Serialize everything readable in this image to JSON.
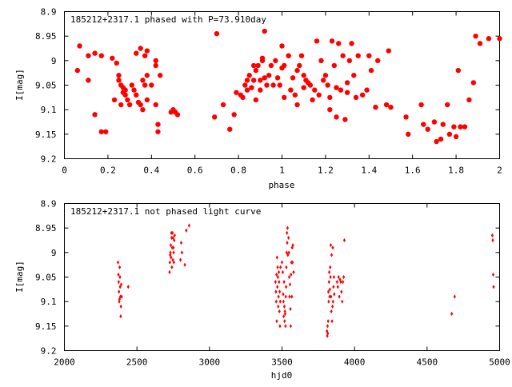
{
  "chart_data": [
    {
      "type": "scatter",
      "title": "185212+2317.1 phased with P=73.910day",
      "xlabel": "phase",
      "ylabel": "I[mag]",
      "xlim": [
        0,
        2
      ],
      "ylim": [
        8.9,
        9.2
      ],
      "y_inverted": true,
      "grid": false,
      "marker_color": "#ff0000",
      "marker": "filled-circle",
      "x_ticks": [
        "0",
        "0.2",
        "0.4",
        "0.6",
        "0.8",
        "1",
        "1.2",
        "1.4",
        "1.6",
        "1.8",
        "2"
      ],
      "x_tick_values": [
        0,
        0.2,
        0.4,
        0.6,
        0.8,
        1.0,
        1.2,
        1.4,
        1.6,
        1.8,
        2.0
      ],
      "y_ticks": [
        "8.9",
        "8.95",
        "9",
        "9.05",
        "9.1",
        "9.15",
        "9.2"
      ],
      "y_tick_values": [
        8.9,
        8.95,
        9.0,
        9.05,
        9.1,
        9.15,
        9.2
      ],
      "points": [
        [
          0.06,
          9.02
        ],
        [
          0.07,
          8.97
        ],
        [
          0.11,
          8.99
        ],
        [
          0.11,
          9.04
        ],
        [
          0.14,
          8.985
        ],
        [
          0.14,
          9.11
        ],
        [
          0.17,
          8.99
        ],
        [
          0.17,
          9.145
        ],
        [
          0.19,
          9.145
        ],
        [
          0.22,
          8.995
        ],
        [
          0.23,
          9.08
        ],
        [
          0.24,
          9.005
        ],
        [
          0.25,
          9.03
        ],
        [
          0.25,
          9.04
        ],
        [
          0.26,
          9.09
        ],
        [
          0.26,
          9.05
        ],
        [
          0.27,
          9.055
        ],
        [
          0.27,
          9.065
        ],
        [
          0.28,
          9.06
        ],
        [
          0.28,
          9.07
        ],
        [
          0.29,
          9.08
        ],
        [
          0.3,
          9.09
        ],
        [
          0.31,
          9.05
        ],
        [
          0.32,
          9.06
        ],
        [
          0.33,
          8.985
        ],
        [
          0.33,
          9.07
        ],
        [
          0.34,
          9.085
        ],
        [
          0.35,
          8.975
        ],
        [
          0.35,
          9.09
        ],
        [
          0.36,
          9.1
        ],
        [
          0.36,
          9.04
        ],
        [
          0.37,
          9.05
        ],
        [
          0.37,
          8.99
        ],
        [
          0.38,
          9.03
        ],
        [
          0.38,
          8.98
        ],
        [
          0.38,
          9.08
        ],
        [
          0.4,
          9.05
        ],
        [
          0.42,
          9.09
        ],
        [
          0.42,
          9.0
        ],
        [
          0.42,
          9.01
        ],
        [
          0.43,
          9.13
        ],
        [
          0.43,
          9.145
        ],
        [
          0.44,
          9.03
        ],
        [
          0.49,
          9.105
        ],
        [
          0.5,
          9.1
        ],
        [
          0.51,
          9.105
        ],
        [
          0.52,
          9.11
        ],
        [
          0.69,
          9.115
        ],
        [
          0.7,
          8.945
        ],
        [
          0.73,
          9.09
        ],
        [
          0.76,
          9.14
        ],
        [
          0.78,
          9.11
        ],
        [
          0.79,
          9.065
        ],
        [
          0.81,
          9.07
        ],
        [
          0.82,
          9.075
        ],
        [
          0.83,
          9.05
        ],
        [
          0.84,
          9.06
        ],
        [
          0.84,
          9.04
        ],
        [
          0.85,
          9.03
        ],
        [
          0.86,
          9.055
        ],
        [
          0.87,
          9.04
        ],
        [
          0.87,
          9.01
        ],
        [
          0.88,
          9.02
        ],
        [
          0.88,
          9.08
        ],
        [
          0.89,
          9.01
        ],
        [
          0.9,
          9.06
        ],
        [
          0.9,
          9.04
        ],
        [
          0.91,
          9.0
        ],
        [
          0.91,
          8.995
        ],
        [
          0.92,
          9.035
        ],
        [
          0.92,
          8.94
        ],
        [
          0.93,
          9.05
        ],
        [
          0.94,
          9.03
        ],
        [
          0.95,
          9.01
        ],
        [
          0.96,
          9.05
        ],
        [
          0.97,
          9.0
        ],
        [
          0.98,
          9.035
        ],
        [
          0.99,
          9.05
        ],
        [
          1.0,
          8.97
        ],
        [
          1.0,
          9.015
        ],
        [
          1.01,
          9.075
        ],
        [
          1.01,
          9.01
        ],
        [
          1.03,
          8.99
        ],
        [
          1.04,
          9.06
        ],
        [
          1.05,
          9.035
        ],
        [
          1.06,
          9.07
        ],
        [
          1.07,
          9.02
        ],
        [
          1.07,
          9.09
        ],
        [
          1.08,
          9.01
        ],
        [
          1.09,
          8.99
        ],
        [
          1.1,
          9.03
        ],
        [
          1.1,
          9.055
        ],
        [
          1.11,
          9.04
        ],
        [
          1.12,
          9.045
        ],
        [
          1.13,
          9.05
        ],
        [
          1.14,
          9.08
        ],
        [
          1.15,
          9.06
        ],
        [
          1.16,
          8.96
        ],
        [
          1.17,
          9.07
        ],
        [
          1.18,
          9.0
        ],
        [
          1.19,
          9.04
        ],
        [
          1.2,
          9.03
        ],
        [
          1.21,
          9.05
        ],
        [
          1.22,
          9.075
        ],
        [
          1.22,
          9.1
        ],
        [
          1.23,
          8.96
        ],
        [
          1.24,
          9.01
        ],
        [
          1.25,
          9.055
        ],
        [
          1.25,
          9.115
        ],
        [
          1.26,
          8.965
        ],
        [
          1.27,
          9.06
        ],
        [
          1.28,
          8.99
        ],
        [
          1.29,
          9.12
        ],
        [
          1.3,
          9.045
        ],
        [
          1.3,
          9.065
        ],
        [
          1.31,
          9.0
        ],
        [
          1.32,
          8.965
        ],
        [
          1.33,
          9.03
        ],
        [
          1.34,
          9.075
        ],
        [
          1.35,
          8.99
        ],
        [
          1.37,
          9.07
        ],
        [
          1.39,
          9.06
        ],
        [
          1.4,
          8.99
        ],
        [
          1.41,
          9.02
        ],
        [
          1.43,
          9.095
        ],
        [
          1.44,
          9.0
        ],
        [
          1.48,
          9.09
        ],
        [
          1.49,
          8.98
        ],
        [
          1.5,
          9.095
        ],
        [
          1.57,
          9.115
        ],
        [
          1.58,
          9.15
        ],
        [
          1.64,
          9.09
        ],
        [
          1.65,
          9.13
        ],
        [
          1.67,
          9.14
        ],
        [
          1.7,
          9.125
        ],
        [
          1.71,
          9.165
        ],
        [
          1.73,
          9.16
        ],
        [
          1.74,
          9.13
        ],
        [
          1.76,
          9.09
        ],
        [
          1.77,
          9.15
        ],
        [
          1.79,
          9.135
        ],
        [
          1.8,
          9.155
        ],
        [
          1.81,
          9.02
        ],
        [
          1.82,
          9.135
        ],
        [
          1.84,
          9.135
        ],
        [
          1.86,
          9.08
        ],
        [
          1.88,
          9.045
        ],
        [
          1.89,
          8.95
        ],
        [
          1.91,
          8.965
        ],
        [
          1.95,
          8.955
        ],
        [
          2.0,
          8.955
        ]
      ]
    },
    {
      "type": "scatter",
      "title": "185212+2317.1 not phased light curve",
      "xlabel": "hjd0",
      "ylabel": "I[mag]",
      "xlim": [
        2000,
        5000
      ],
      "ylim": [
        8.9,
        9.2
      ],
      "y_inverted": true,
      "grid": false,
      "marker_color": "#ff0000",
      "marker": "small-diamond",
      "x_ticks": [
        "2000",
        "2500",
        "3000",
        "3500",
        "4000",
        "4500",
        "5000"
      ],
      "x_tick_values": [
        2000,
        2500,
        3000,
        3500,
        4000,
        4500,
        5000
      ],
      "y_ticks": [
        "8.9",
        "8.95",
        "9",
        "9.05",
        "9.1",
        "9.15",
        "9.2"
      ],
      "y_tick_values": [
        8.9,
        8.95,
        9.0,
        9.05,
        9.1,
        9.15,
        9.2
      ],
      "points": [
        [
          2370,
          9.02
        ],
        [
          2372,
          9.045
        ],
        [
          2374,
          9.06
        ],
        [
          2376,
          9.08
        ],
        [
          2378,
          9.1
        ],
        [
          2380,
          9.095
        ],
        [
          2381,
          9.03
        ],
        [
          2383,
          9.05
        ],
        [
          2384,
          9.07
        ],
        [
          2386,
          9.09
        ],
        [
          2388,
          9.13
        ],
        [
          2390,
          9.11
        ],
        [
          2392,
          9.065
        ],
        [
          2395,
          9.09
        ],
        [
          2440,
          9.07
        ],
        [
          2725,
          9.04
        ],
        [
          2727,
          9.02
        ],
        [
          2729,
          9.005
        ],
        [
          2731,
          9.0
        ],
        [
          2733,
          8.985
        ],
        [
          2735,
          9.01
        ],
        [
          2737,
          8.96
        ],
        [
          2739,
          8.97
        ],
        [
          2741,
          9.03
        ],
        [
          2743,
          8.99
        ],
        [
          2745,
          8.96
        ],
        [
          2747,
          9.015
        ],
        [
          2749,
          8.97
        ],
        [
          2751,
          8.99
        ],
        [
          2753,
          9.0
        ],
        [
          2755,
          9.02
        ],
        [
          2757,
          8.975
        ],
        [
          2760,
          8.965
        ],
        [
          2800,
          9.015
        ],
        [
          2805,
          8.98
        ],
        [
          2810,
          9.0
        ],
        [
          2830,
          9.025
        ],
        [
          2840,
          8.955
        ],
        [
          2860,
          8.945
        ],
        [
          3455,
          9.06
        ],
        [
          3458,
          9.08
        ],
        [
          3460,
          9.1
        ],
        [
          3462,
          9.045
        ],
        [
          3464,
          9.14
        ],
        [
          3466,
          9.01
        ],
        [
          3468,
          9.07
        ],
        [
          3470,
          9.03
        ],
        [
          3472,
          9.05
        ],
        [
          3474,
          9.11
        ],
        [
          3476,
          9.09
        ],
        [
          3478,
          9.04
        ],
        [
          3480,
          9.06
        ],
        [
          3482,
          9.12
        ],
        [
          3484,
          9.08
        ],
        [
          3486,
          9.15
        ],
        [
          3488,
          9.1
        ],
        [
          3490,
          9.03
        ],
        [
          3500,
          9.02
        ],
        [
          3505,
          9.04
        ],
        [
          3508,
          9.085
        ],
        [
          3510,
          9.1
        ],
        [
          3512,
          9.13
        ],
        [
          3514,
          9.06
        ],
        [
          3516,
          9.11
        ],
        [
          3518,
          9.14
        ],
        [
          3520,
          9.12
        ],
        [
          3522,
          9.125
        ],
        [
          3524,
          9.15
        ],
        [
          3526,
          9.09
        ],
        [
          3528,
          9.07
        ],
        [
          3530,
          9.03
        ],
        [
          3532,
          9.0
        ],
        [
          3534,
          8.96
        ],
        [
          3536,
          8.98
        ],
        [
          3538,
          8.95
        ],
        [
          3540,
          9.005
        ],
        [
          3545,
          8.97
        ],
        [
          3548,
          9.0
        ],
        [
          3550,
          9.05
        ],
        [
          3552,
          9.09
        ],
        [
          3555,
          9.065
        ],
        [
          3558,
          9.115
        ],
        [
          3560,
          9.15
        ],
        [
          3562,
          9.045
        ],
        [
          3565,
          9.02
        ],
        [
          3568,
          9.09
        ],
        [
          3570,
          8.99
        ],
        [
          3572,
          9.02
        ],
        [
          3575,
          8.985
        ],
        [
          3580,
          9.04
        ],
        [
          3810,
          9.16
        ],
        [
          3812,
          9.17
        ],
        [
          3814,
          9.15
        ],
        [
          3816,
          9.165
        ],
        [
          3818,
          9.14
        ],
        [
          3820,
          9.08
        ],
        [
          3822,
          9.1
        ],
        [
          3824,
          9.06
        ],
        [
          3826,
          9.04
        ],
        [
          3828,
          9.09
        ],
        [
          3830,
          9.075
        ],
        [
          3832,
          9.03
        ],
        [
          3834,
          9.05
        ],
        [
          3836,
          8.985
        ],
        [
          3838,
          9.09
        ],
        [
          3840,
          9.12
        ],
        [
          3842,
          9.005
        ],
        [
          3845,
          9.14
        ],
        [
          3848,
          9.11
        ],
        [
          3850,
          8.99
        ],
        [
          3852,
          9.1
        ],
        [
          3855,
          9.07
        ],
        [
          3858,
          9.05
        ],
        [
          3860,
          9.085
        ],
        [
          3880,
          9.06
        ],
        [
          3885,
          9.07
        ],
        [
          3890,
          9.05
        ],
        [
          3895,
          9.09
        ],
        [
          3900,
          9.055
        ],
        [
          3905,
          9.06
        ],
        [
          3910,
          9.08
        ],
        [
          3915,
          9.1
        ],
        [
          3920,
          9.06
        ],
        [
          3925,
          9.05
        ],
        [
          3930,
          8.975
        ],
        [
          4670,
          9.125
        ],
        [
          4690,
          9.09
        ],
        [
          4950,
          8.965
        ],
        [
          4953,
          8.975
        ],
        [
          4956,
          9.045
        ],
        [
          4959,
          9.07
        ]
      ]
    }
  ]
}
